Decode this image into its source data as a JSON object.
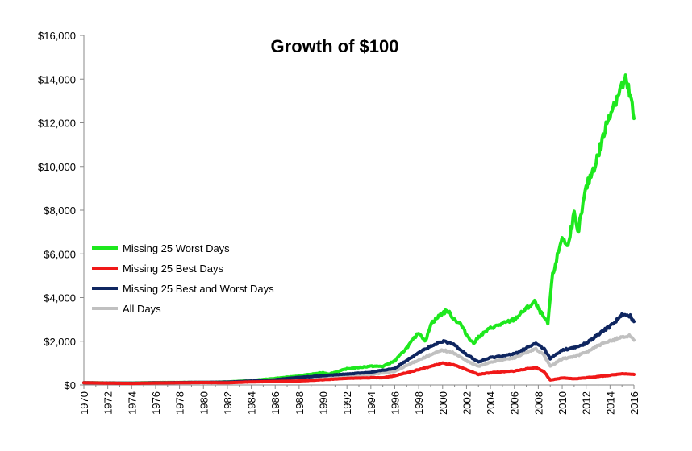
{
  "chart_data": {
    "type": "line",
    "title": "Growth of $100",
    "xlabel": "",
    "ylabel": "",
    "xlim": [
      1970,
      2016
    ],
    "ylim": [
      0,
      16000
    ],
    "x_ticks": [
      "1970",
      "1972",
      "1974",
      "1976",
      "1978",
      "1980",
      "1982",
      "1984",
      "1986",
      "1988",
      "1990",
      "1992",
      "1994",
      "1996",
      "1998",
      "2000",
      "2002",
      "2004",
      "2006",
      "2008",
      "2010",
      "2012",
      "2014",
      "2016"
    ],
    "y_ticks": [
      "$0",
      "$2,000",
      "$4,000",
      "$6,000",
      "$8,000",
      "$10,000",
      "$12,000",
      "$14,000",
      "$16,000"
    ],
    "legend_position": "center-left",
    "series": [
      {
        "name": "Missing 25 Worst Days",
        "color": "#1ee81e",
        "x": [
          1970,
          1974,
          1976,
          1980,
          1982,
          1984,
          1986,
          1987.8,
          1988,
          1990,
          1990.5,
          1992,
          1994,
          1995,
          1996,
          1997,
          1998,
          1998.6,
          1999,
          2000,
          2000.4,
          2001,
          2001.5,
          2002,
          2002.6,
          2003,
          2004,
          2005,
          2006,
          2007,
          2007.7,
          2008,
          2008.8,
          2009,
          2009.2,
          2010,
          2010.4,
          2011,
          2011.3,
          2012,
          2013,
          2014,
          2015,
          2015.3,
          2015.7,
          2016
        ],
        "values": [
          100,
          90,
          110,
          120,
          140,
          200,
          300,
          400,
          420,
          560,
          500,
          740,
          860,
          850,
          1100,
          1700,
          2400,
          2000,
          2800,
          3300,
          3400,
          3000,
          2800,
          2300,
          1900,
          2200,
          2600,
          2800,
          3000,
          3500,
          3800,
          3500,
          2800,
          4000,
          5000,
          6800,
          6300,
          7800,
          6900,
          9000,
          10500,
          12500,
          13700,
          13900,
          13200,
          12200
        ]
      },
      {
        "name": "Missing 25 Best Days",
        "color": "#f01818",
        "x": [
          1970,
          1974,
          1976,
          1980,
          1982,
          1984,
          1986,
          1988,
          1990,
          1992,
          1994,
          1995,
          1996,
          1998,
          2000,
          2001,
          2002,
          2003,
          2004,
          2006,
          2007.8,
          2008.5,
          2009,
          2010,
          2011,
          2012,
          2014,
          2015,
          2016
        ],
        "values": [
          100,
          70,
          90,
          110,
          100,
          140,
          160,
          180,
          240,
          300,
          330,
          330,
          420,
          700,
          1000,
          900,
          700,
          480,
          560,
          640,
          800,
          600,
          220,
          320,
          280,
          330,
          440,
          520,
          480
        ]
      },
      {
        "name": "Missing 25 Best and Worst Days",
        "color": "#0f2660",
        "x": [
          1970,
          1974,
          1976,
          1980,
          1982,
          1984,
          1986,
          1988,
          1990,
          1992,
          1994,
          1996,
          1998,
          2000,
          2001,
          2002,
          2003,
          2004,
          2006,
          2007.8,
          2008.5,
          2009,
          2010,
          2011,
          2012,
          2013,
          2014,
          2015,
          2015.7,
          2016
        ],
        "values": [
          100,
          80,
          100,
          120,
          130,
          180,
          240,
          350,
          420,
          500,
          580,
          760,
          1500,
          2000,
          1850,
          1400,
          1050,
          1250,
          1420,
          1900,
          1650,
          1200,
          1600,
          1700,
          1900,
          2300,
          2700,
          3200,
          3150,
          2900
        ]
      },
      {
        "name": "All Days",
        "color": "#c0c0c0",
        "x": [
          1970,
          1974,
          1976,
          1980,
          1982,
          1984,
          1986,
          1988,
          1990,
          1992,
          1994,
          1996,
          1998,
          2000,
          2001,
          2002,
          2003,
          2004,
          2006,
          2007.8,
          2008.5,
          2009,
          2010,
          2011,
          2012,
          2013,
          2014,
          2015,
          2015.7,
          2016
        ],
        "values": [
          100,
          80,
          100,
          120,
          130,
          180,
          240,
          300,
          360,
          420,
          480,
          620,
          1150,
          1600,
          1450,
          1100,
          850,
          1050,
          1250,
          1650,
          1350,
          850,
          1200,
          1300,
          1500,
          1800,
          2000,
          2200,
          2250,
          2050
        ]
      }
    ]
  }
}
